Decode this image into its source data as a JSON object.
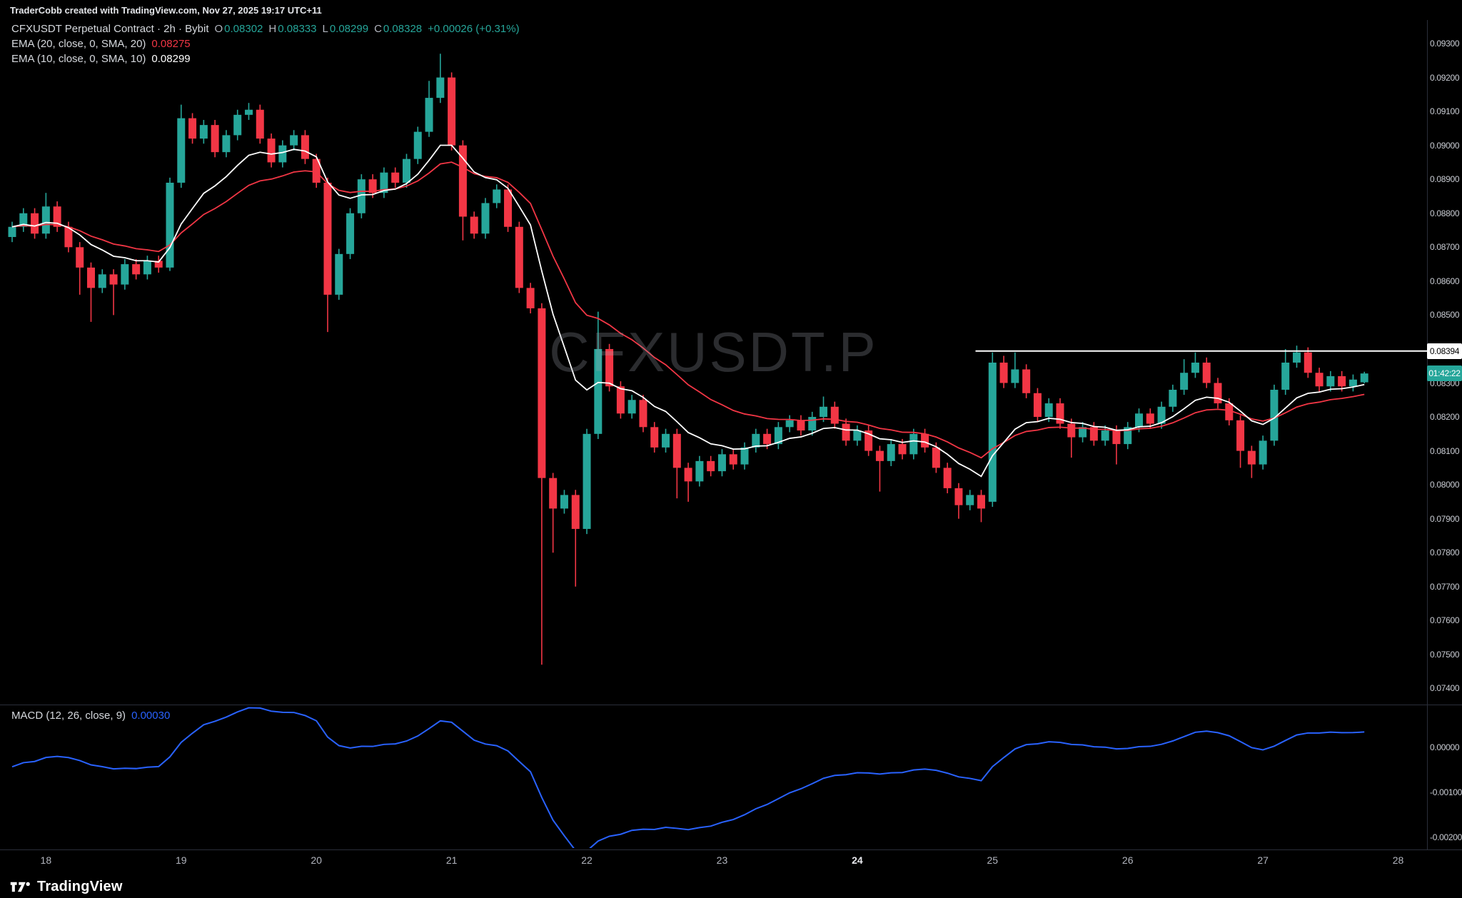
{
  "colors": {
    "bg": "#000000",
    "up": "#26a69a",
    "down": "#f23645",
    "ema10": "#ffffff",
    "ema20": "#f23645",
    "macd": "#2962ff",
    "axis_text": "#c9ccd3",
    "separator": "#2a2e39",
    "resistance": "#ffffff"
  },
  "header": {
    "attribution": "TraderCobb created with TradingView.com, Nov 27, 2025 19:17 UTC+11"
  },
  "legend": {
    "symbol": "CFXUSDT Perpetual Contract · 2h · Bybit",
    "o_label": "O",
    "o": "0.08302",
    "h_label": "H",
    "h": "0.08333",
    "l_label": "L",
    "l": "0.08299",
    "c_label": "C",
    "c": "0.08328",
    "change": "+0.00026 (+0.31%)",
    "ema20_label": "EMA (20, close, 0, SMA, 20)",
    "ema20_value": "0.08275",
    "ema10_label": "EMA (10, close, 0, SMA, 10)",
    "ema10_value": "0.08299"
  },
  "watermark": "CFXUSDT.P",
  "labels": {
    "resistance_price": "0.08394",
    "countdown": "01:42:22"
  },
  "macd_panel": {
    "legend": "MACD (12, 26, close, 9)",
    "value": "0.00030"
  },
  "footer": {
    "brand": "TradingView"
  },
  "chart_data": {
    "type": "candlestick",
    "title": "CFXUSDT Perpetual Contract",
    "exchange": "Bybit",
    "interval": "2h",
    "price_range": [
      0.0735,
      0.0937
    ],
    "macd_range": [
      -0.0022,
      0.0009
    ],
    "last": {
      "o": 0.08302,
      "h": 0.08333,
      "l": 0.08299,
      "c": 0.08328,
      "change": "+0.00026",
      "change_pct": "+0.31%"
    },
    "current_price": 0.08328,
    "resistance": {
      "price": 0.08394,
      "from_index": 86
    },
    "emas": [
      {
        "length": 10,
        "color_key": "ema10"
      },
      {
        "length": 20,
        "color_key": "ema20"
      }
    ],
    "macd": {
      "fast": 12,
      "slow": 26,
      "signal": 9,
      "current": 0.0003,
      "ticks": [
        {
          "label": "0.00000",
          "value": 0
        },
        {
          "label": "-0.00100",
          "value": -0.001
        },
        {
          "label": "-0.00200",
          "value": -0.002
        }
      ]
    },
    "price_ticks": [
      {
        "label": "0.09300",
        "value": 0.093
      },
      {
        "label": "0.09200",
        "value": 0.092
      },
      {
        "label": "0.09100",
        "value": 0.091
      },
      {
        "label": "0.09000",
        "value": 0.09
      },
      {
        "label": "0.08900",
        "value": 0.089
      },
      {
        "label": "0.08800",
        "value": 0.088
      },
      {
        "label": "0.08700",
        "value": 0.087
      },
      {
        "label": "0.08600",
        "value": 0.086
      },
      {
        "label": "0.08500",
        "value": 0.085
      },
      {
        "label": "0.08400",
        "value": 0.084
      },
      {
        "label": "0.08300",
        "value": 0.083
      },
      {
        "label": "0.08200",
        "value": 0.082
      },
      {
        "label": "0.08100",
        "value": 0.081
      },
      {
        "label": "0.08000",
        "value": 0.08
      },
      {
        "label": "0.07900",
        "value": 0.079
      },
      {
        "label": "0.07800",
        "value": 0.078
      },
      {
        "label": "0.07700",
        "value": 0.077
      },
      {
        "label": "0.07600",
        "value": 0.076
      },
      {
        "label": "0.07500",
        "value": 0.075
      },
      {
        "label": "0.07400",
        "value": 0.074
      }
    ],
    "time_ticks": [
      {
        "label": "18",
        "index": 3,
        "bold": false
      },
      {
        "label": "19",
        "index": 15,
        "bold": false
      },
      {
        "label": "20",
        "index": 27,
        "bold": false
      },
      {
        "label": "21",
        "index": 39,
        "bold": false
      },
      {
        "label": "22",
        "index": 51,
        "bold": false
      },
      {
        "label": "23",
        "index": 63,
        "bold": false
      },
      {
        "label": "24",
        "index": 75,
        "bold": true
      },
      {
        "label": "25",
        "index": 87,
        "bold": false
      },
      {
        "label": "26",
        "index": 99,
        "bold": false
      },
      {
        "label": "27",
        "index": 111,
        "bold": false
      },
      {
        "label": "28",
        "index": 123,
        "bold": false
      }
    ],
    "candles": [
      [
        0.0873,
        0.08775,
        0.08715,
        0.0876
      ],
      [
        0.0876,
        0.08815,
        0.08745,
        0.088
      ],
      [
        0.088,
        0.08815,
        0.08725,
        0.0874
      ],
      [
        0.0874,
        0.0886,
        0.08725,
        0.0882
      ],
      [
        0.0882,
        0.08835,
        0.08745,
        0.0876
      ],
      [
        0.0876,
        0.08775,
        0.08685,
        0.087
      ],
      [
        0.087,
        0.08715,
        0.0856,
        0.0864
      ],
      [
        0.0864,
        0.08655,
        0.0848,
        0.0858
      ],
      [
        0.0858,
        0.08635,
        0.08565,
        0.0862
      ],
      [
        0.0862,
        0.08635,
        0.085,
        0.0859
      ],
      [
        0.0859,
        0.08665,
        0.08575,
        0.0865
      ],
      [
        0.0865,
        0.08665,
        0.08605,
        0.0862
      ],
      [
        0.0862,
        0.08675,
        0.08605,
        0.0866
      ],
      [
        0.0866,
        0.08675,
        0.08625,
        0.0864
      ],
      [
        0.0864,
        0.08905,
        0.0863,
        0.0889
      ],
      [
        0.0889,
        0.0912,
        0.08875,
        0.0908
      ],
      [
        0.0908,
        0.09095,
        0.09005,
        0.0902
      ],
      [
        0.0902,
        0.09075,
        0.09005,
        0.0906
      ],
      [
        0.0906,
        0.09075,
        0.08965,
        0.0898
      ],
      [
        0.0898,
        0.09045,
        0.08965,
        0.0903
      ],
      [
        0.0903,
        0.09105,
        0.09015,
        0.0909
      ],
      [
        0.0909,
        0.09125,
        0.09075,
        0.09105
      ],
      [
        0.09105,
        0.0912,
        0.09005,
        0.0902
      ],
      [
        0.0902,
        0.09035,
        0.08935,
        0.0895
      ],
      [
        0.0895,
        0.09015,
        0.08935,
        0.09
      ],
      [
        0.09,
        0.09045,
        0.08985,
        0.0903
      ],
      [
        0.0903,
        0.09045,
        0.08945,
        0.0896
      ],
      [
        0.0896,
        0.08975,
        0.08875,
        0.0889
      ],
      [
        0.0889,
        0.08905,
        0.0845,
        0.0856
      ],
      [
        0.0856,
        0.08695,
        0.08545,
        0.0868
      ],
      [
        0.0868,
        0.08815,
        0.08665,
        0.088
      ],
      [
        0.088,
        0.08915,
        0.08785,
        0.089
      ],
      [
        0.089,
        0.08915,
        0.08845,
        0.0886
      ],
      [
        0.0886,
        0.08935,
        0.08845,
        0.0892
      ],
      [
        0.0892,
        0.08935,
        0.08875,
        0.0889
      ],
      [
        0.0889,
        0.08975,
        0.08875,
        0.0896
      ],
      [
        0.0896,
        0.09055,
        0.08945,
        0.0904
      ],
      [
        0.0904,
        0.0919,
        0.09025,
        0.0914
      ],
      [
        0.0914,
        0.0927,
        0.09125,
        0.092
      ],
      [
        0.092,
        0.09215,
        0.08985,
        0.09
      ],
      [
        0.09,
        0.09015,
        0.0872,
        0.0879
      ],
      [
        0.0879,
        0.08805,
        0.08725,
        0.0874
      ],
      [
        0.0874,
        0.08845,
        0.08725,
        0.0883
      ],
      [
        0.0883,
        0.08885,
        0.08815,
        0.0887
      ],
      [
        0.0887,
        0.08885,
        0.08745,
        0.0876
      ],
      [
        0.0876,
        0.08775,
        0.08565,
        0.0858
      ],
      [
        0.0858,
        0.08595,
        0.08505,
        0.0852
      ],
      [
        0.0852,
        0.08535,
        0.0747,
        0.0802
      ],
      [
        0.0802,
        0.08035,
        0.078,
        0.0793
      ],
      [
        0.0793,
        0.07985,
        0.07915,
        0.0797
      ],
      [
        0.0797,
        0.07985,
        0.077,
        0.0787
      ],
      [
        0.0787,
        0.08165,
        0.07855,
        0.0815
      ],
      [
        0.0815,
        0.0851,
        0.08135,
        0.084
      ],
      [
        0.084,
        0.08415,
        0.08275,
        0.0829
      ],
      [
        0.0829,
        0.08305,
        0.08195,
        0.0821
      ],
      [
        0.0821,
        0.08265,
        0.08195,
        0.0825
      ],
      [
        0.0825,
        0.08265,
        0.08155,
        0.0817
      ],
      [
        0.0817,
        0.08185,
        0.08095,
        0.0811
      ],
      [
        0.0811,
        0.08165,
        0.08095,
        0.0815
      ],
      [
        0.0815,
        0.08165,
        0.0796,
        0.0805
      ],
      [
        0.0805,
        0.08065,
        0.0795,
        0.0801
      ],
      [
        0.0801,
        0.08085,
        0.07995,
        0.0807
      ],
      [
        0.0807,
        0.08085,
        0.08025,
        0.0804
      ],
      [
        0.0804,
        0.08105,
        0.08025,
        0.0809
      ],
      [
        0.0809,
        0.08105,
        0.08045,
        0.0806
      ],
      [
        0.0806,
        0.08125,
        0.08045,
        0.0811
      ],
      [
        0.0811,
        0.08165,
        0.08095,
        0.0815
      ],
      [
        0.0815,
        0.08165,
        0.08105,
        0.0812
      ],
      [
        0.0812,
        0.08185,
        0.08105,
        0.0817
      ],
      [
        0.0817,
        0.08205,
        0.08155,
        0.0819
      ],
      [
        0.0819,
        0.08205,
        0.08145,
        0.0816
      ],
      [
        0.0816,
        0.08215,
        0.08145,
        0.082
      ],
      [
        0.082,
        0.0826,
        0.08185,
        0.0823
      ],
      [
        0.0823,
        0.08245,
        0.08165,
        0.0818
      ],
      [
        0.0818,
        0.08195,
        0.08115,
        0.0813
      ],
      [
        0.0813,
        0.08175,
        0.08115,
        0.0816
      ],
      [
        0.0816,
        0.08175,
        0.08085,
        0.081
      ],
      [
        0.081,
        0.08115,
        0.0798,
        0.0807
      ],
      [
        0.0807,
        0.08135,
        0.08055,
        0.0812
      ],
      [
        0.0812,
        0.08135,
        0.08075,
        0.0809
      ],
      [
        0.0809,
        0.08165,
        0.08075,
        0.0815
      ],
      [
        0.0815,
        0.08165,
        0.08095,
        0.0811
      ],
      [
        0.0811,
        0.08125,
        0.08035,
        0.0805
      ],
      [
        0.0805,
        0.08065,
        0.07975,
        0.0799
      ],
      [
        0.0799,
        0.08005,
        0.079,
        0.0794
      ],
      [
        0.0794,
        0.07985,
        0.07925,
        0.0797
      ],
      [
        0.0797,
        0.07985,
        0.0789,
        0.0793
      ],
      [
        0.0795,
        0.0839,
        0.07935,
        0.0836
      ],
      [
        0.0836,
        0.0838,
        0.08285,
        0.083
      ],
      [
        0.083,
        0.0839,
        0.08285,
        0.0834
      ],
      [
        0.0834,
        0.08355,
        0.08255,
        0.0827
      ],
      [
        0.0827,
        0.08285,
        0.08185,
        0.082
      ],
      [
        0.082,
        0.08255,
        0.08185,
        0.0824
      ],
      [
        0.0824,
        0.08255,
        0.08165,
        0.0818
      ],
      [
        0.0818,
        0.08195,
        0.0808,
        0.0814
      ],
      [
        0.0814,
        0.08185,
        0.08125,
        0.0817
      ],
      [
        0.0817,
        0.08185,
        0.08115,
        0.0813
      ],
      [
        0.0813,
        0.08175,
        0.08115,
        0.0816
      ],
      [
        0.0816,
        0.08175,
        0.0806,
        0.0812
      ],
      [
        0.0812,
        0.08185,
        0.08105,
        0.0817
      ],
      [
        0.0817,
        0.08225,
        0.08155,
        0.0821
      ],
      [
        0.0821,
        0.08225,
        0.08165,
        0.0818
      ],
      [
        0.0818,
        0.08245,
        0.08165,
        0.0823
      ],
      [
        0.0823,
        0.08295,
        0.08215,
        0.0828
      ],
      [
        0.0828,
        0.0837,
        0.08265,
        0.0833
      ],
      [
        0.0833,
        0.0839,
        0.08315,
        0.0836
      ],
      [
        0.0836,
        0.08375,
        0.08285,
        0.083
      ],
      [
        0.083,
        0.08315,
        0.08225,
        0.0824
      ],
      [
        0.0824,
        0.08255,
        0.08175,
        0.0819
      ],
      [
        0.0819,
        0.08205,
        0.0805,
        0.081
      ],
      [
        0.081,
        0.08115,
        0.0802,
        0.0806
      ],
      [
        0.0806,
        0.08145,
        0.08045,
        0.0813
      ],
      [
        0.0813,
        0.08295,
        0.08115,
        0.0828
      ],
      [
        0.0828,
        0.084,
        0.08265,
        0.0836
      ],
      [
        0.0836,
        0.0841,
        0.08345,
        0.0839
      ],
      [
        0.0839,
        0.08405,
        0.08315,
        0.0833
      ],
      [
        0.0833,
        0.08345,
        0.08275,
        0.0829
      ],
      [
        0.0829,
        0.08335,
        0.08275,
        0.0832
      ],
      [
        0.0832,
        0.08335,
        0.08275,
        0.0829
      ],
      [
        0.0829,
        0.08325,
        0.08275,
        0.0831
      ],
      [
        0.08302,
        0.08333,
        0.08299,
        0.08328
      ]
    ]
  }
}
